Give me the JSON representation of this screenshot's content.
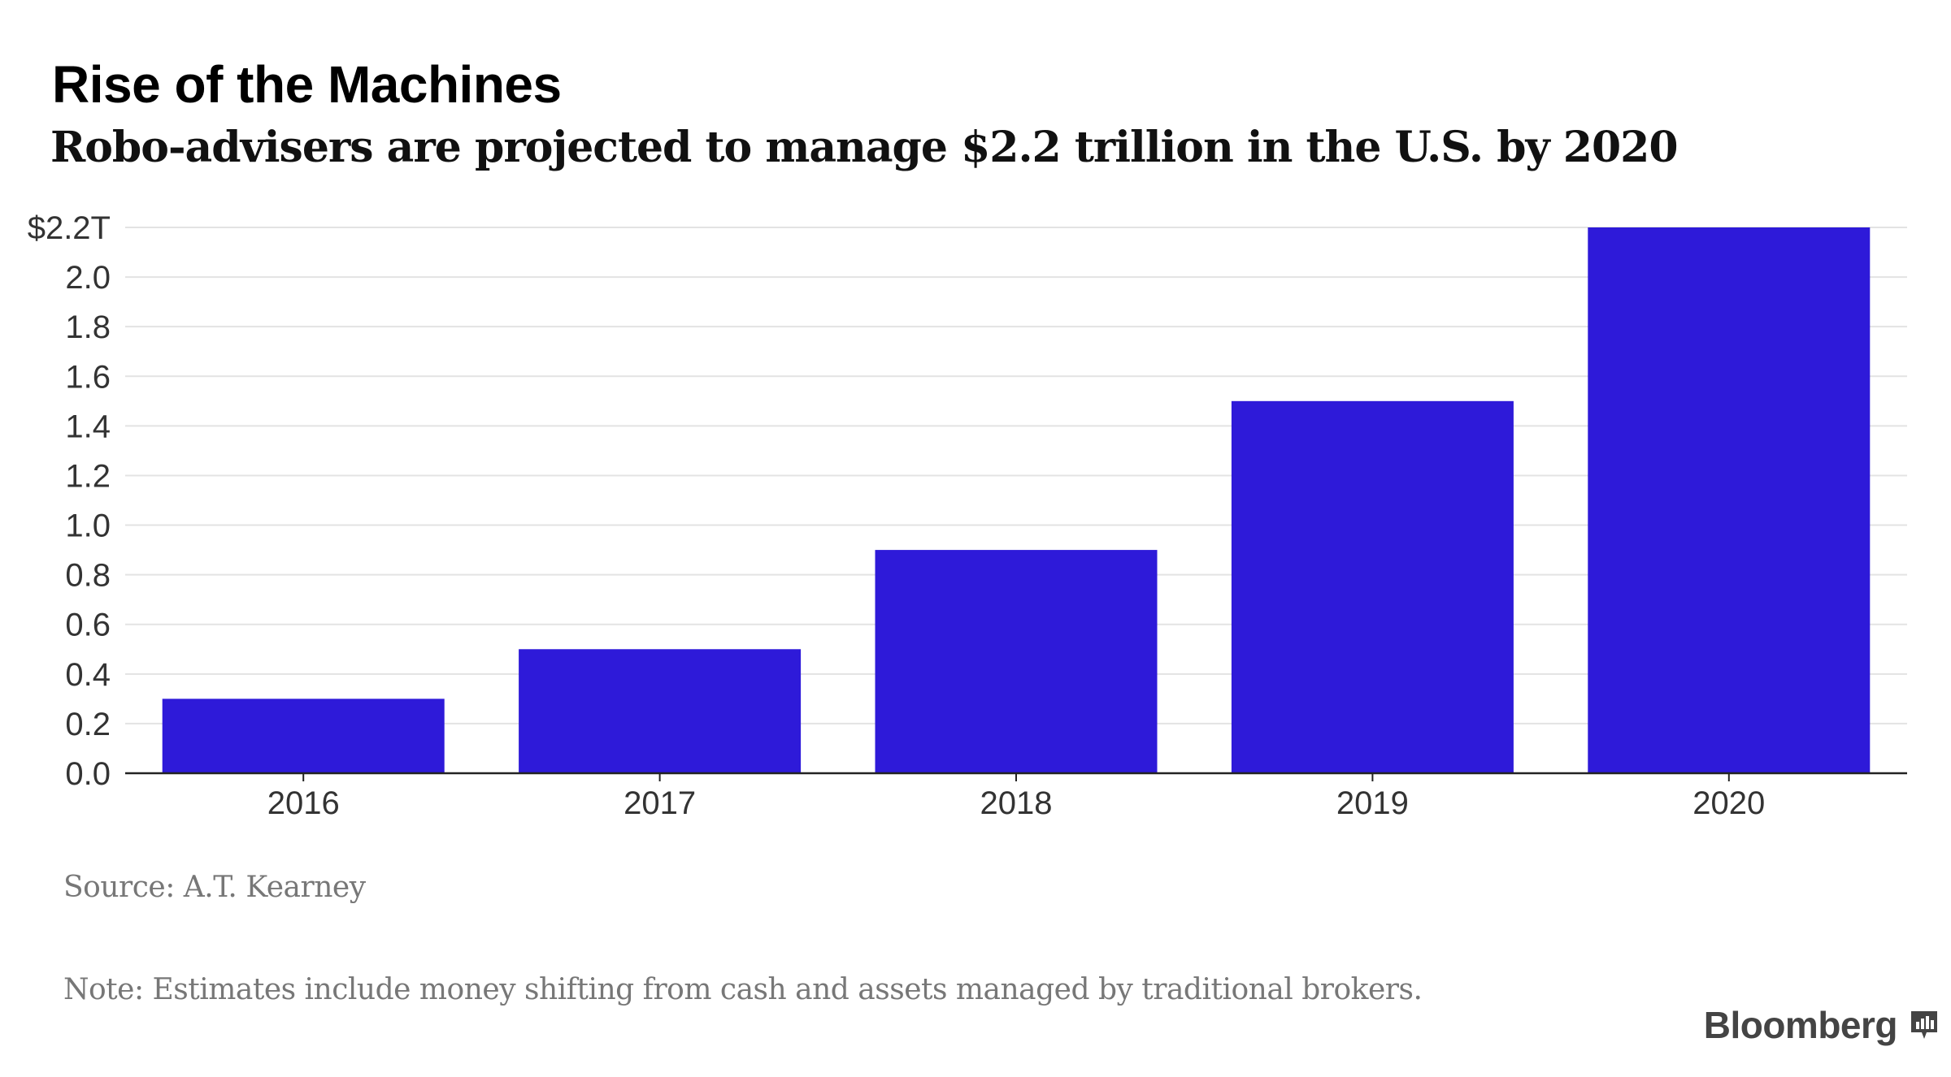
{
  "title": "Rise of the Machines",
  "subtitle": "Robo-advisers are projected to manage $2.2 trillion in the U.S. by 2020",
  "source": "Source: A.T. Kearney",
  "note": "Note: Estimates include money shifting from cash and assets managed by traditional brokers.",
  "brand": "Bloomberg",
  "brand_icon": "bloomberg-terminal-icon",
  "colors": {
    "bar": "#2e1ad9",
    "grid": "#e3e3e3",
    "axis": "#222222"
  },
  "chart_data": {
    "type": "bar",
    "title": "Rise of the Machines",
    "subtitle": "Robo-advisers are projected to manage $2.2 trillion in the U.S. by 2020",
    "xlabel": "",
    "ylabel": "",
    "categories": [
      "2016",
      "2017",
      "2018",
      "2019",
      "2020"
    ],
    "values": [
      0.3,
      0.5,
      0.9,
      1.5,
      2.2
    ],
    "ylim": [
      0,
      2.2
    ],
    "yticks": [
      0.0,
      0.2,
      0.4,
      0.6,
      0.8,
      1.0,
      1.2,
      1.4,
      1.6,
      1.8,
      2.0,
      2.2
    ],
    "ytick_labels": [
      "0.0",
      "0.2",
      "0.4",
      "0.6",
      "0.8",
      "1.0",
      "1.2",
      "1.4",
      "1.6",
      "1.8",
      "2.0",
      "$2.2T"
    ],
    "grid": true,
    "legend": "none"
  }
}
